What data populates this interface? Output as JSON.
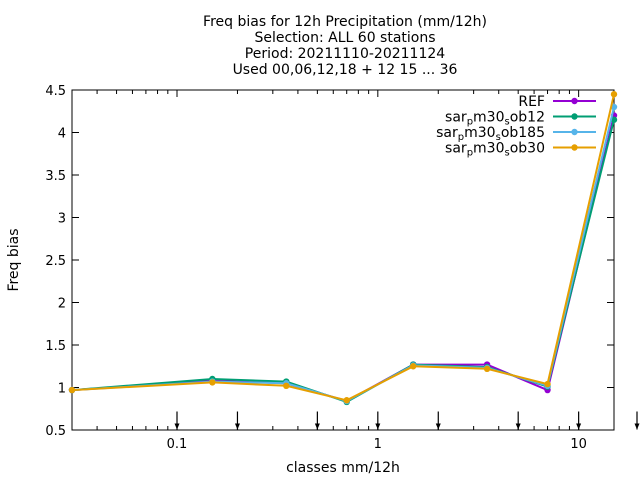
{
  "chart_data": {
    "type": "line",
    "title_lines": [
      "Freq bias  for 12h Precipitation (mm/12h)",
      "Selection: ALL     60 stations",
      "Period: 20211110-20211124",
      "Used 00,06,12,18 + 12 15 ... 36"
    ],
    "xlabel": "classes mm/12h",
    "ylabel": "Freq bias",
    "x_scale": "log",
    "xlim": [
      0.03,
      15
    ],
    "ylim": [
      0.5,
      4.5
    ],
    "x_ticks": [
      0.1,
      1,
      10
    ],
    "x_tick_labels": [
      "0.1",
      "1",
      "10"
    ],
    "y_ticks": [
      0.5,
      1,
      1.5,
      2,
      2.5,
      3,
      3.5,
      4,
      4.5
    ],
    "y_tick_labels": [
      "0.5",
      "1",
      "1.5",
      "2",
      "2.5",
      "3",
      "3.5",
      "4",
      "4.5"
    ],
    "grid": false,
    "legend_position": "top-right",
    "x": [
      0.03,
      0.15,
      0.35,
      0.7,
      1.5,
      3.5,
      7,
      15
    ],
    "series": [
      {
        "name": "REF",
        "label_parts": [
          [
            "REF",
            ""
          ]
        ],
        "color": "#9400d3",
        "values": [
          0.97,
          1.08,
          1.05,
          0.84,
          1.27,
          1.27,
          0.97,
          4.2
        ]
      },
      {
        "name": "sar_pm30_sob12",
        "label_parts": [
          [
            "sar",
            ""
          ],
          [
            "p",
            "sub"
          ],
          [
            "m30",
            ""
          ],
          [
            "s",
            "sub"
          ],
          [
            "ob12",
            ""
          ]
        ],
        "color": "#009e73",
        "values": [
          0.97,
          1.1,
          1.07,
          0.83,
          1.27,
          1.24,
          1.01,
          4.15
        ]
      },
      {
        "name": "sar_pm30_sob185",
        "label_parts": [
          [
            "sar",
            ""
          ],
          [
            "p",
            "sub"
          ],
          [
            "m30",
            ""
          ],
          [
            "s",
            "sub"
          ],
          [
            "ob185",
            ""
          ]
        ],
        "color": "#56b4e9",
        "values": [
          0.97,
          1.07,
          1.05,
          0.84,
          1.26,
          1.23,
          1.02,
          4.3
        ]
      },
      {
        "name": "sar_pm30_sob30",
        "label_parts": [
          [
            "sar",
            ""
          ],
          [
            "p",
            "sub"
          ],
          [
            "m30",
            ""
          ],
          [
            "s",
            "sub"
          ],
          [
            "ob30",
            ""
          ]
        ],
        "color": "#e69f00",
        "values": [
          0.97,
          1.06,
          1.02,
          0.85,
          1.25,
          1.22,
          1.04,
          4.45
        ]
      }
    ],
    "arrow_markers_x": [
      0.1,
      0.2,
      0.5,
      1,
      2,
      5,
      10,
      20
    ],
    "arrow_markers_y": 0.6
  }
}
